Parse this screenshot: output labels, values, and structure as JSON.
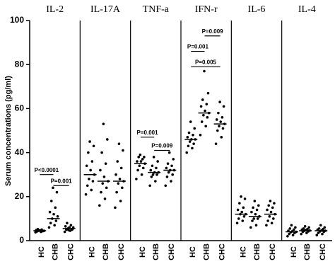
{
  "chart_data": {
    "type": "dot",
    "ylabel": "Serum concentrations (pg/ml)",
    "ylim": [
      0,
      100
    ],
    "yticks": [
      0,
      20,
      40,
      60,
      80,
      100
    ],
    "color": "#000000",
    "panels": [
      {
        "title": "IL-2",
        "groups": [
          {
            "name": "HC",
            "median": 4.5,
            "values": [
              3.8,
              4,
              4.2,
              4.3,
              4.5,
              4.5,
              4.6,
              4.8,
              5,
              5.2,
              4.4,
              4.7
            ]
          },
          {
            "name": "CHB",
            "median": 10,
            "values": [
              6,
              7,
              8,
              9,
              10,
              11,
              12,
              13,
              15,
              18,
              22,
              24
            ]
          },
          {
            "name": "CHC",
            "median": 5.5,
            "values": [
              4,
              4.5,
              5,
              5,
              5.5,
              6,
              6,
              6.5,
              7,
              8,
              5.2,
              4.8
            ]
          }
        ],
        "comparisons": [
          {
            "label": "P<0.0001",
            "y": 30,
            "groups": [
              "HC",
              "CHB"
            ]
          },
          {
            "label": "P=0.001",
            "y": 25,
            "groups": [
              "CHB",
              "CHC"
            ]
          }
        ]
      },
      {
        "title": "IL-17A",
        "groups": [
          {
            "name": "HC",
            "median": 30,
            "values": [
              21,
              23,
              25,
              27,
              28,
              30,
              32,
              34,
              36,
              40,
              43,
              45
            ]
          },
          {
            "name": "CHB",
            "median": 27,
            "values": [
              16,
              19,
              22,
              24,
              26,
              27,
              29,
              32,
              35,
              40,
              46,
              53
            ]
          },
          {
            "name": "CHC",
            "median": 27,
            "values": [
              15,
              18,
              22,
              24,
              26,
              27,
              28,
              30,
              33,
              36,
              41,
              44
            ]
          }
        ],
        "comparisons": []
      },
      {
        "title": "TNF-a",
        "groups": [
          {
            "name": "HC",
            "median": 35,
            "values": [
              28,
              30,
              32,
              33,
              34,
              35,
              36,
              36,
              37,
              38,
              38,
              39
            ]
          },
          {
            "name": "CHB",
            "median": 31,
            "values": [
              25,
              27,
              29,
              30,
              30,
              31,
              31,
              32,
              33,
              34,
              36,
              38
            ]
          },
          {
            "name": "CHC",
            "median": 32,
            "values": [
              25,
              27,
              29,
              30,
              31,
              32,
              32,
              33,
              34,
              35,
              37,
              40
            ]
          }
        ],
        "comparisons": [
          {
            "label": "P=0.001",
            "y": 47,
            "groups": [
              "HC",
              "CHB"
            ]
          },
          {
            "label": "P=0.009",
            "y": 41,
            "groups": [
              "CHB",
              "CHC"
            ]
          }
        ]
      },
      {
        "title": "IFN-r",
        "groups": [
          {
            "name": "HC",
            "median": 46,
            "values": [
              40,
              42,
              43,
              44,
              45,
              46,
              46,
              47,
              48,
              49,
              51,
              54
            ]
          },
          {
            "name": "CHB",
            "median": 58,
            "values": [
              48,
              52,
              54,
              56,
              57,
              58,
              59,
              61,
              62,
              64,
              67,
              77
            ]
          },
          {
            "name": "CHC",
            "median": 53,
            "values": [
              44,
              47,
              50,
              51,
              52,
              53,
              54,
              55,
              56,
              58,
              61,
              63
            ]
          }
        ],
        "comparisons": [
          {
            "label": "P=0.009",
            "y": 93,
            "groups": [
              "CHB",
              "CHC"
            ]
          },
          {
            "label": "P=0.001",
            "y": 86,
            "groups": [
              "HC",
              "CHB"
            ]
          },
          {
            "label": "P=0.005",
            "y": 79,
            "groups": [
              "HC",
              "CHC"
            ]
          }
        ]
      },
      {
        "title": "IL-6",
        "groups": [
          {
            "name": "HC",
            "median": 12,
            "values": [
              8,
              9,
              10,
              11,
              12,
              12,
              13,
              14,
              15,
              17,
              19,
              20
            ]
          },
          {
            "name": "CHB",
            "median": 11,
            "values": [
              6,
              7,
              9,
              10,
              10,
              11,
              12,
              13,
              14,
              15,
              16,
              18
            ]
          },
          {
            "name": "CHC",
            "median": 12,
            "values": [
              7,
              8,
              9,
              10,
              11,
              12,
              13,
              14,
              15,
              16,
              17,
              18
            ]
          }
        ],
        "comparisons": []
      },
      {
        "title": "IL-4",
        "groups": [
          {
            "name": "HC",
            "median": 4,
            "values": [
              2,
              2.5,
              3,
              3.5,
              3.8,
              4,
              4.2,
              4.5,
              5,
              5.5,
              6,
              7
            ]
          },
          {
            "name": "CHB",
            "median": 4.5,
            "values": [
              3,
              3.5,
              4,
              4.2,
              4.5,
              4.6,
              4.8,
              5,
              5.2,
              5.5,
              6,
              6.5
            ]
          },
          {
            "name": "CHC",
            "median": 4.5,
            "values": [
              2.5,
              3,
              3.5,
              4,
              4.2,
              4.5,
              4.6,
              5,
              5.2,
              5.5,
              6,
              7
            ]
          }
        ],
        "comparisons": []
      }
    ]
  }
}
